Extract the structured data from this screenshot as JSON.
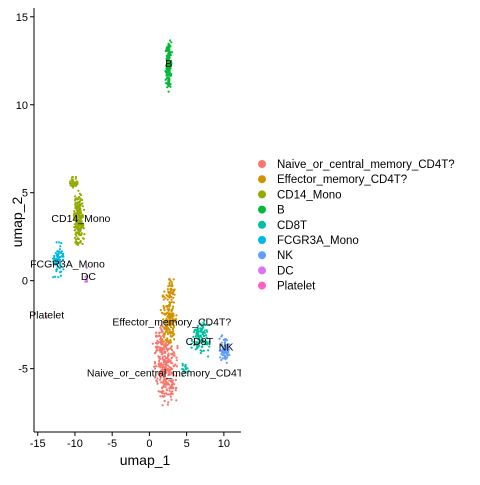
{
  "chart_data": {
    "type": "scatter",
    "xlabel": "umap_1",
    "ylabel": "umap_2",
    "xlim": [
      -15.5,
      12.3
    ],
    "ylim": [
      -8.6,
      15.5
    ],
    "x_ticks": [
      -15,
      -10,
      -5,
      0,
      5,
      10
    ],
    "y_ticks": [
      -5,
      0,
      5,
      10,
      15
    ],
    "grid": false,
    "legend_position": "right",
    "series": [
      {
        "name": "Naive_or_central_memory_CD4T?",
        "color": "#F8766D",
        "label": "Naive_or_central_memory_CD4T?",
        "label_position": [
          2.5,
          -5.3
        ],
        "clusters": [
          {
            "center": [
              2.3,
              -5.2
            ],
            "spread": [
              1.3,
              1.6
            ],
            "n": 230
          },
          {
            "center": [
              1.7,
              -3.6
            ],
            "spread": [
              1.0,
              1.0
            ],
            "n": 90
          }
        ]
      },
      {
        "name": "Effector_memory_CD4T?",
        "color": "#D39200",
        "label": "Effector_memory_CD4T?",
        "label_position": [
          3.0,
          -2.4
        ],
        "clusters": [
          {
            "center": [
              2.7,
              -2.2
            ],
            "spread": [
              0.9,
              1.3
            ],
            "n": 170
          },
          {
            "center": [
              2.9,
              -0.5
            ],
            "spread": [
              0.5,
              0.6
            ],
            "n": 40
          }
        ]
      },
      {
        "name": "CD14_Mono",
        "color": "#93AA00",
        "label": "CD14_Mono",
        "label_position": [
          -9.2,
          3.5
        ],
        "clusters": [
          {
            "center": [
              -9.5,
              3.5
            ],
            "spread": [
              0.6,
              1.3
            ],
            "n": 200
          },
          {
            "center": [
              -10.1,
              5.6
            ],
            "spread": [
              0.5,
              0.3
            ],
            "n": 40
          }
        ]
      },
      {
        "name": "B",
        "color": "#00BA38",
        "label": "B",
        "label_position": [
          2.6,
          12.3
        ],
        "clusters": [
          {
            "center": [
              2.6,
              12.3
            ],
            "spread": [
              0.35,
              1.2
            ],
            "n": 170
          }
        ]
      },
      {
        "name": "CD8T",
        "color": "#00C19F",
        "label": "CD8T",
        "label_position": [
          6.7,
          -3.5
        ],
        "clusters": [
          {
            "center": [
              6.8,
              -3.3
            ],
            "spread": [
              1.1,
              0.8
            ],
            "n": 110
          },
          {
            "center": [
              4.8,
              -5.0
            ],
            "spread": [
              0.4,
              0.4
            ],
            "n": 15
          }
        ]
      },
      {
        "name": "FCGR3A_Mono",
        "color": "#00B9E3",
        "label": "FCGR3A_Mono",
        "label_position": [
          -11.0,
          0.9
        ],
        "clusters": [
          {
            "center": [
              -12.2,
              1.2
            ],
            "spread": [
              0.6,
              0.8
            ],
            "n": 70
          }
        ]
      },
      {
        "name": "NK",
        "color": "#619CFF",
        "label": "NK",
        "label_position": [
          10.3,
          -3.8
        ],
        "clusters": [
          {
            "center": [
              10.1,
              -3.9
            ],
            "spread": [
              0.55,
              0.65
            ],
            "n": 70
          }
        ]
      },
      {
        "name": "DC",
        "color": "#DB72FB",
        "label": "DC",
        "label_position": [
          -8.2,
          0.2
        ],
        "clusters": [
          {
            "center": [
              -8.4,
              0.3
            ],
            "spread": [
              0.2,
              0.4
            ],
            "n": 8
          }
        ]
      },
      {
        "name": "Platelet",
        "color": "#FF61C3",
        "label": "Platelet",
        "label_position": [
          -13.8,
          -2.0
        ],
        "clusters": [
          {
            "center": [
              -13.8,
              -2.0
            ],
            "spread": [
              0.15,
              0.15
            ],
            "n": 2
          }
        ]
      }
    ]
  }
}
